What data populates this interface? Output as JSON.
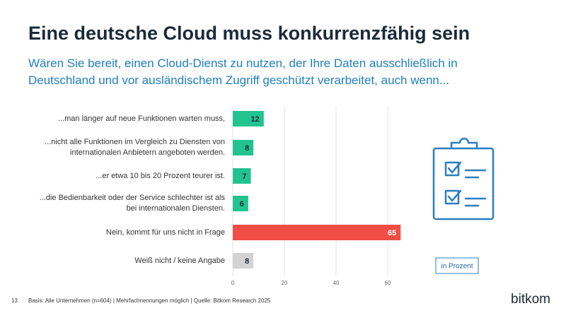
{
  "chart_data": {
    "type": "bar",
    "orientation": "horizontal",
    "title": "Eine deutsche Cloud muss konkurrenzfähig sein",
    "subtitle": "Wären Sie bereit, einen Cloud-Dienst zu nutzen, der Ihre Daten ausschließlich in Deutschland und vor ausländischem Zugriff geschützt verarbeitet, auch wenn...",
    "categories": [
      "...man länger auf neue Funktionen warten muss,",
      "...nicht alle Funktionen im Vergleich zu Diensten von internationalen Anbietern angeboten werden.",
      "...er etwa 10 bis 20 Prozent teurer ist.",
      "...die Bedienbarkeit oder der Service schlechter ist als bei internationalen Diensten.",
      "Nein, kommt für uns nicht in Frage",
      "Weiß nicht / keine Angabe"
    ],
    "values": [
      12,
      8,
      7,
      6,
      65,
      8
    ],
    "colors": [
      "#22c38e",
      "#22c38e",
      "#22c38e",
      "#22c38e",
      "#f04e45",
      "#d3d3d3"
    ],
    "xlim": [
      0,
      70
    ],
    "xticks": [
      0,
      20,
      40,
      60
    ],
    "grid": true,
    "unit_label": "in Prozent",
    "page_number": "13",
    "footnote": "Basis: Alle Unternehmen (n=604) | Mehrfachnennungen möglich | Quelle: Bitkom Research 2025",
    "logo": "bitkom"
  }
}
